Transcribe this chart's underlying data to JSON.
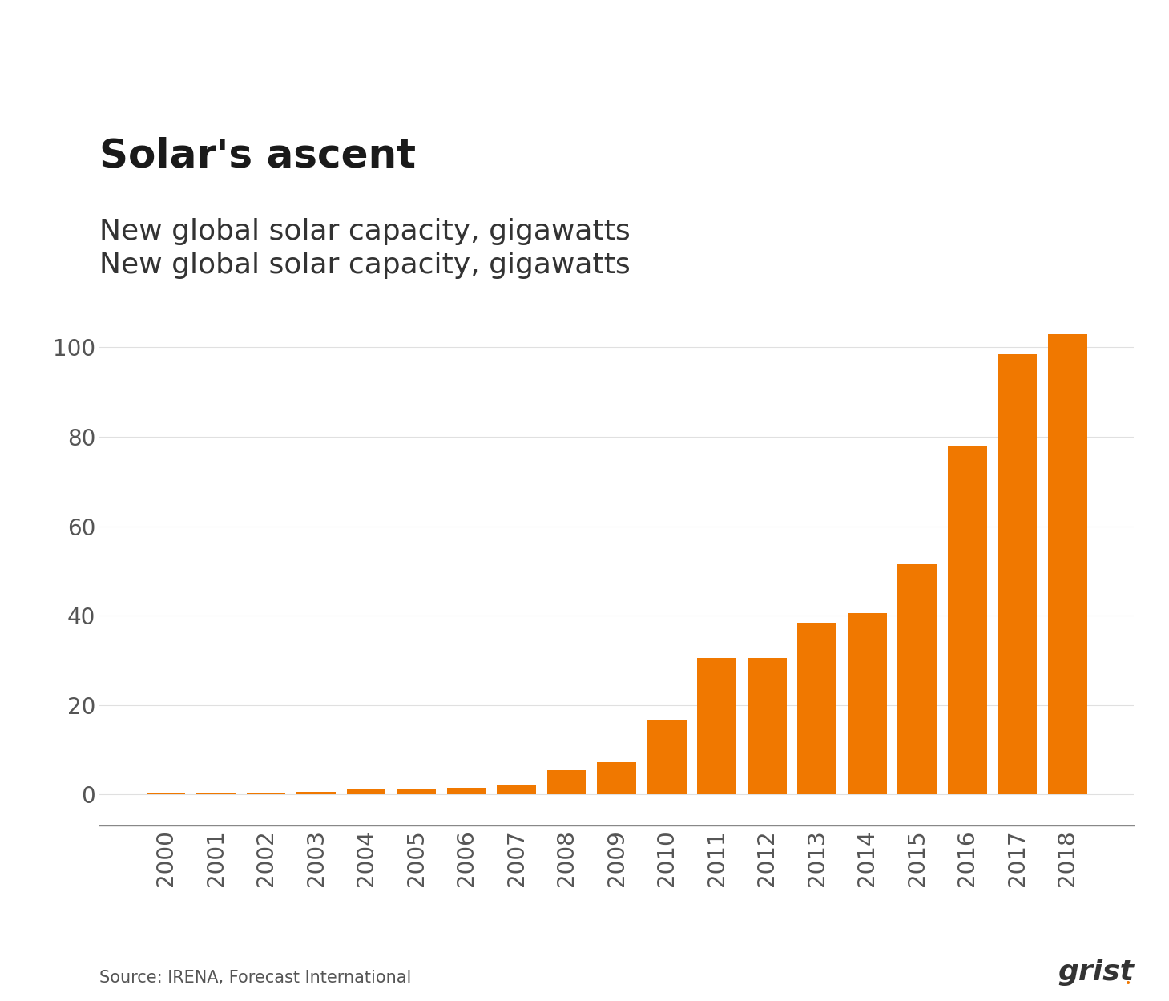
{
  "title": "Solar's ascent",
  "subtitle": "New global solar capacity, gigawatts",
  "source_text": "Source: IRENA, Forecast International",
  "years": [
    2000,
    2001,
    2002,
    2003,
    2004,
    2005,
    2006,
    2007,
    2008,
    2009,
    2010,
    2011,
    2012,
    2013,
    2014,
    2015,
    2016,
    2017,
    2018
  ],
  "values": [
    0.3,
    0.3,
    0.5,
    0.6,
    1.1,
    1.4,
    1.5,
    2.2,
    5.5,
    7.2,
    16.6,
    30.5,
    30.5,
    38.5,
    40.5,
    51.5,
    78.0,
    98.5,
    103.0
  ],
  "bar_color": "#F07800",
  "background_color": "#FFFFFF",
  "ylim": [
    -7,
    115
  ],
  "yticks": [
    0,
    20,
    40,
    60,
    80,
    100
  ],
  "grid_color": "#E0E0E0",
  "title_fontsize": 36,
  "subtitle_fontsize": 26,
  "tick_fontsize": 20,
  "source_fontsize": 15,
  "title_color": "#1a1a1a",
  "subtitle_color": "#333333",
  "tick_color": "#555555",
  "source_color": "#555555",
  "grist_color": "#333333"
}
